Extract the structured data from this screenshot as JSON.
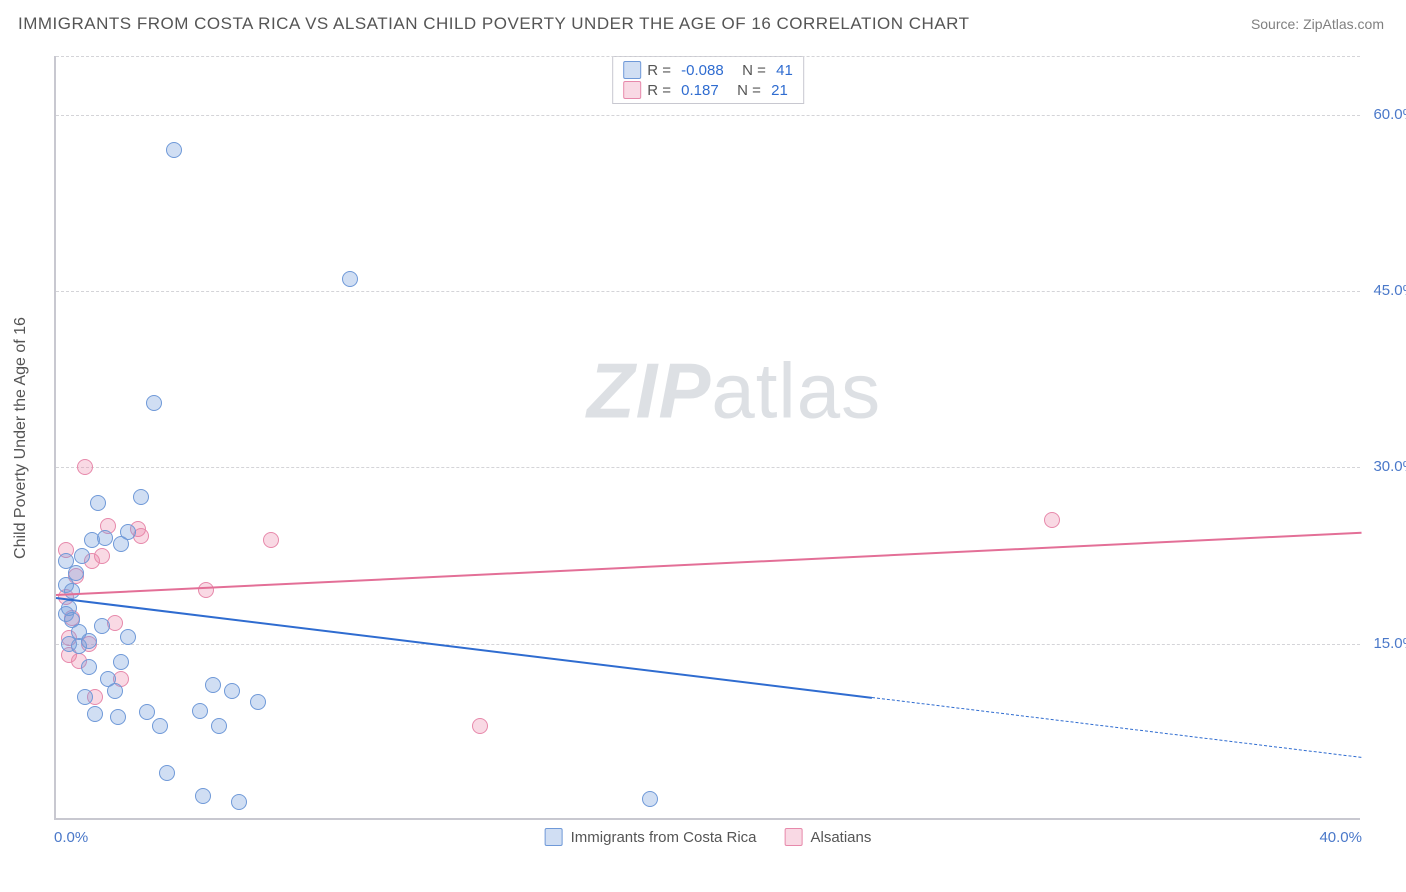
{
  "title": "IMMIGRANTS FROM COSTA RICA VS ALSATIAN CHILD POVERTY UNDER THE AGE OF 16 CORRELATION CHART",
  "source_prefix": "Source: ",
  "source_name": "ZipAtlas.com",
  "watermark_a": "ZIP",
  "watermark_b": "atlas",
  "chart": {
    "type": "scatter",
    "xlim": [
      0.0,
      40.0
    ],
    "ylim": [
      0.0,
      65.0
    ],
    "xtick_labels": [
      "0.0%",
      "40.0%"
    ],
    "ytick_values": [
      15.0,
      30.0,
      45.0,
      60.0
    ],
    "ytick_labels": [
      "15.0%",
      "30.0%",
      "45.0%",
      "60.0%"
    ],
    "ylabel": "Child Poverty Under the Age of 16",
    "series_a": {
      "name": "Immigrants from Costa Rica",
      "color_fill": "#9cbce8",
      "color_stroke": "#6f99d8",
      "trend_color": "#2f6cd0",
      "R": "-0.088",
      "N": "41",
      "trend_start": [
        0.0,
        19.0
      ],
      "trend_solid_end": [
        25.0,
        10.5
      ],
      "trend_dash_end": [
        40.0,
        5.4
      ],
      "points": [
        [
          0.3,
          22.0
        ],
        [
          0.3,
          17.5
        ],
        [
          0.3,
          20.0
        ],
        [
          0.4,
          15.0
        ],
        [
          0.4,
          18.0
        ],
        [
          0.5,
          17.0
        ],
        [
          0.5,
          19.5
        ],
        [
          0.6,
          21.0
        ],
        [
          0.7,
          14.8
        ],
        [
          0.7,
          16.0
        ],
        [
          0.8,
          22.5
        ],
        [
          0.9,
          10.5
        ],
        [
          1.0,
          13.0
        ],
        [
          1.0,
          15.2
        ],
        [
          1.1,
          23.8
        ],
        [
          1.2,
          9.0
        ],
        [
          1.3,
          27.0
        ],
        [
          1.4,
          16.5
        ],
        [
          1.5,
          24.0
        ],
        [
          1.6,
          12.0
        ],
        [
          1.8,
          11.0
        ],
        [
          1.9,
          8.8
        ],
        [
          2.0,
          23.5
        ],
        [
          2.0,
          13.4
        ],
        [
          2.2,
          24.5
        ],
        [
          2.2,
          15.6
        ],
        [
          2.6,
          27.5
        ],
        [
          2.8,
          9.2
        ],
        [
          3.0,
          35.5
        ],
        [
          3.2,
          8.0
        ],
        [
          3.4,
          4.0
        ],
        [
          3.6,
          57.0
        ],
        [
          4.4,
          9.3
        ],
        [
          4.5,
          2.0
        ],
        [
          4.8,
          11.5
        ],
        [
          5.0,
          8.0
        ],
        [
          5.4,
          11.0
        ],
        [
          5.6,
          1.5
        ],
        [
          6.2,
          10.0
        ],
        [
          9.0,
          46.0
        ],
        [
          18.2,
          1.8
        ]
      ]
    },
    "series_b": {
      "name": "Alsatians",
      "color_fill": "#f3b9cc",
      "color_stroke": "#e789ab",
      "trend_color": "#e36f97",
      "R": "0.187",
      "N": "21",
      "trend_start": [
        0.0,
        19.2
      ],
      "trend_end": [
        40.0,
        24.5
      ],
      "points": [
        [
          0.3,
          23.0
        ],
        [
          0.3,
          19.0
        ],
        [
          0.4,
          15.5
        ],
        [
          0.4,
          14.0
        ],
        [
          0.5,
          17.2
        ],
        [
          0.6,
          20.8
        ],
        [
          0.7,
          13.5
        ],
        [
          0.9,
          30.0
        ],
        [
          1.0,
          15.0
        ],
        [
          1.1,
          22.0
        ],
        [
          1.2,
          10.5
        ],
        [
          1.4,
          22.5
        ],
        [
          1.6,
          25.0
        ],
        [
          1.8,
          16.8
        ],
        [
          2.0,
          12.0
        ],
        [
          2.5,
          24.8
        ],
        [
          2.6,
          24.2
        ],
        [
          4.6,
          19.6
        ],
        [
          6.6,
          23.8
        ],
        [
          13.0,
          8.0
        ],
        [
          30.5,
          25.5
        ]
      ]
    },
    "legend_top": {
      "r_label": "R = ",
      "n_label": "   N = "
    }
  }
}
